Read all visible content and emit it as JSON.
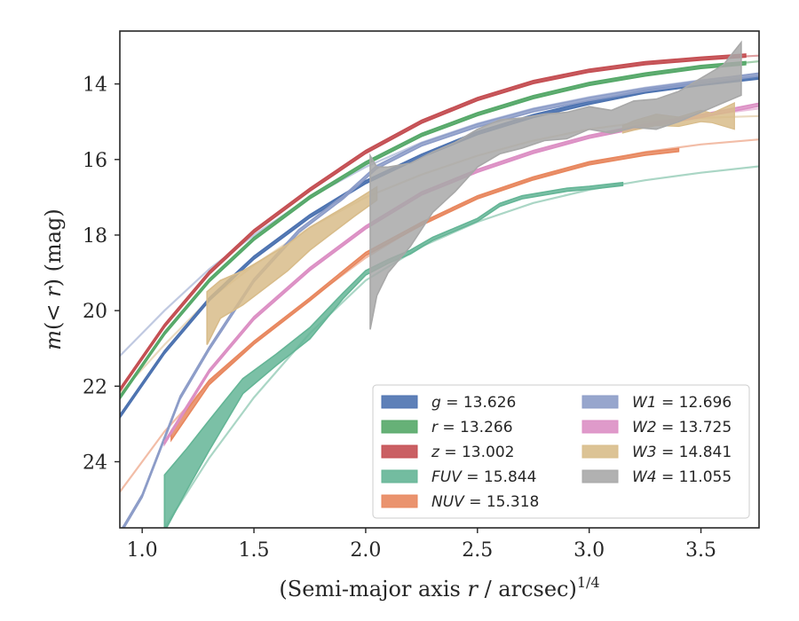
{
  "chart_data": {
    "type": "line",
    "xlabel": "(Semi-major axis r / arcsec)^{1/4}",
    "ylabel": "m(< r) (mag)",
    "xlim": [
      0.9,
      3.76
    ],
    "ylim": [
      25.75,
      12.6
    ],
    "y_inverted": true,
    "xticks": [
      1.0,
      1.5,
      2.0,
      2.5,
      3.0,
      3.5
    ],
    "xtick_labels": [
      "1.0",
      "1.5",
      "2.0",
      "2.5",
      "3.0",
      "3.5"
    ],
    "yticks": [
      14,
      16,
      18,
      20,
      22,
      24
    ],
    "ytick_labels": [
      "14",
      "16",
      "18",
      "20",
      "22",
      "24"
    ],
    "legend_position": "lower right",
    "legend_columns": 2,
    "series": [
      {
        "name": "g = 13.626",
        "legend": {
          "sym": "g",
          "rest": " = 13.626"
        },
        "color": "#4c72b0",
        "model": [
          [
            0.9,
            22.8
          ],
          [
            1.1,
            21.1
          ],
          [
            1.3,
            19.7
          ],
          [
            1.5,
            18.6
          ],
          [
            1.75,
            17.5
          ],
          [
            2.0,
            16.6
          ],
          [
            2.25,
            15.9
          ],
          [
            2.5,
            15.3
          ],
          [
            2.75,
            14.85
          ],
          [
            3.0,
            14.5
          ],
          [
            3.25,
            14.2
          ],
          [
            3.5,
            14.0
          ],
          [
            3.76,
            13.83
          ]
        ],
        "data": [
          [
            0.9,
            22.8
          ],
          [
            1.1,
            21.1
          ],
          [
            1.3,
            19.7
          ],
          [
            1.5,
            18.6
          ],
          [
            1.75,
            17.5
          ],
          [
            2.0,
            16.6
          ],
          [
            2.25,
            15.9
          ],
          [
            2.5,
            15.3
          ],
          [
            2.75,
            14.85
          ],
          [
            3.0,
            14.5
          ],
          [
            3.25,
            14.2
          ],
          [
            3.5,
            14.0
          ],
          [
            3.76,
            13.83
          ]
        ],
        "data_width": 0.08
      },
      {
        "name": "r = 13.266",
        "legend": {
          "sym": "r",
          "rest": " = 13.266"
        },
        "color": "#55a868",
        "model": [
          [
            0.9,
            22.3
          ],
          [
            1.1,
            20.6
          ],
          [
            1.3,
            19.2
          ],
          [
            1.5,
            18.1
          ],
          [
            1.75,
            17.0
          ],
          [
            2.0,
            16.1
          ],
          [
            2.25,
            15.35
          ],
          [
            2.5,
            14.8
          ],
          [
            2.75,
            14.35
          ],
          [
            3.0,
            14.0
          ],
          [
            3.25,
            13.75
          ],
          [
            3.5,
            13.55
          ],
          [
            3.76,
            13.4
          ]
        ],
        "data": [
          [
            0.9,
            22.3
          ],
          [
            1.1,
            20.6
          ],
          [
            1.3,
            19.2
          ],
          [
            1.5,
            18.1
          ],
          [
            1.75,
            17.0
          ],
          [
            2.0,
            16.1
          ],
          [
            2.25,
            15.35
          ],
          [
            2.5,
            14.8
          ],
          [
            2.75,
            14.35
          ],
          [
            3.0,
            14.0
          ],
          [
            3.25,
            13.75
          ],
          [
            3.5,
            13.55
          ],
          [
            3.7,
            13.45
          ]
        ],
        "data_width": 0.08
      },
      {
        "name": "z = 13.002",
        "legend": {
          "sym": "z",
          "rest": " = 13.002"
        },
        "color": "#c44e52",
        "model": [
          [
            0.9,
            22.1
          ],
          [
            1.1,
            20.4
          ],
          [
            1.3,
            19.0
          ],
          [
            1.5,
            17.9
          ],
          [
            1.75,
            16.8
          ],
          [
            2.0,
            15.8
          ],
          [
            2.25,
            15.0
          ],
          [
            2.5,
            14.4
          ],
          [
            2.75,
            13.95
          ],
          [
            3.0,
            13.65
          ],
          [
            3.25,
            13.45
          ],
          [
            3.5,
            13.33
          ],
          [
            3.76,
            13.25
          ]
        ],
        "data": [
          [
            0.9,
            22.1
          ],
          [
            1.1,
            20.4
          ],
          [
            1.3,
            19.0
          ],
          [
            1.5,
            17.9
          ],
          [
            1.75,
            16.8
          ],
          [
            2.0,
            15.8
          ],
          [
            2.25,
            15.0
          ],
          [
            2.5,
            14.4
          ],
          [
            2.75,
            13.95
          ],
          [
            3.0,
            13.65
          ],
          [
            3.25,
            13.45
          ],
          [
            3.5,
            13.33
          ],
          [
            3.7,
            13.25
          ]
        ],
        "data_width": 0.08
      },
      {
        "name": "FUV = 15.844",
        "legend": {
          "sym": "FUV",
          "rest": " = 15.844"
        },
        "color": "#64b596",
        "model": [
          [
            1.1,
            25.75
          ],
          [
            1.3,
            23.9
          ],
          [
            1.5,
            22.3
          ],
          [
            1.75,
            20.6
          ],
          [
            2.0,
            19.2
          ],
          [
            2.25,
            18.3
          ],
          [
            2.5,
            17.65
          ],
          [
            2.75,
            17.15
          ],
          [
            3.0,
            16.8
          ],
          [
            3.25,
            16.55
          ],
          [
            3.5,
            16.35
          ],
          [
            3.76,
            16.18
          ]
        ],
        "data": [
          [
            1.1,
            25.1
          ],
          [
            1.2,
            24.2
          ],
          [
            1.3,
            23.3
          ],
          [
            1.45,
            22.0
          ],
          [
            1.6,
            21.3
          ],
          [
            1.75,
            20.6
          ],
          [
            1.9,
            19.6
          ],
          [
            2.0,
            19.0
          ],
          [
            2.1,
            18.7
          ],
          [
            2.2,
            18.45
          ],
          [
            2.3,
            18.1
          ],
          [
            2.4,
            17.85
          ],
          [
            2.5,
            17.6
          ],
          [
            2.6,
            17.2
          ],
          [
            2.7,
            17.0
          ],
          [
            2.8,
            16.9
          ],
          [
            2.9,
            16.8
          ],
          [
            3.0,
            16.75
          ],
          [
            3.15,
            16.65
          ]
        ],
        "data_width": [
          1.5,
          1.1,
          0.8,
          0.4,
          0.3,
          0.3,
          0.15,
          0.12,
          0.1,
          0.1,
          0.08,
          0.08,
          0.08,
          0.08,
          0.08,
          0.08,
          0.08,
          0.08,
          0.08
        ]
      },
      {
        "name": "NUV = 15.318",
        "legend": {
          "sym": "NUV",
          "rest": " = 15.318"
        },
        "color": "#e8875e",
        "model": [
          [
            0.9,
            24.8
          ],
          [
            1.1,
            23.2
          ],
          [
            1.3,
            21.9
          ],
          [
            1.5,
            20.85
          ],
          [
            1.75,
            19.7
          ],
          [
            2.0,
            18.6
          ],
          [
            2.25,
            17.7
          ],
          [
            2.5,
            17.0
          ],
          [
            2.75,
            16.5
          ],
          [
            3.0,
            16.1
          ],
          [
            3.25,
            15.8
          ],
          [
            3.5,
            15.6
          ],
          [
            3.76,
            15.47
          ]
        ],
        "data": [
          [
            1.13,
            23.3
          ],
          [
            1.3,
            21.9
          ],
          [
            1.5,
            20.85
          ],
          [
            1.75,
            19.7
          ],
          [
            2.0,
            18.5
          ],
          [
            2.25,
            17.7
          ],
          [
            2.5,
            17.0
          ],
          [
            2.75,
            16.5
          ],
          [
            3.0,
            16.1
          ],
          [
            3.25,
            15.85
          ],
          [
            3.4,
            15.75
          ]
        ],
        "data_width": [
          0.25,
          0.12,
          0.08,
          0.08,
          0.08,
          0.08,
          0.08,
          0.08,
          0.08,
          0.08,
          0.08
        ]
      },
      {
        "name": "W1 = 12.696",
        "legend": {
          "sym": "W1",
          "rest": " = 12.696"
        },
        "color": "#8c9cc8",
        "model": [
          [
            0.9,
            21.2
          ],
          [
            1.1,
            20.0
          ],
          [
            1.3,
            18.9
          ],
          [
            1.5,
            18.0
          ],
          [
            1.75,
            17.0
          ],
          [
            2.0,
            16.2
          ],
          [
            2.25,
            15.55
          ],
          [
            2.5,
            15.05
          ],
          [
            2.75,
            14.65
          ],
          [
            3.0,
            14.35
          ],
          [
            3.25,
            14.1
          ],
          [
            3.5,
            13.9
          ],
          [
            3.76,
            13.73
          ]
        ],
        "data": [
          [
            0.9,
            25.9
          ],
          [
            1.0,
            24.9
          ],
          [
            1.17,
            22.3
          ],
          [
            1.3,
            21.0
          ],
          [
            1.5,
            19.2
          ],
          [
            1.7,
            17.9
          ],
          [
            1.9,
            17.0
          ],
          [
            2.05,
            16.2
          ],
          [
            2.25,
            15.6
          ],
          [
            2.5,
            15.1
          ],
          [
            2.75,
            14.7
          ],
          [
            3.0,
            14.4
          ],
          [
            3.25,
            14.15
          ],
          [
            3.5,
            13.95
          ],
          [
            3.76,
            13.75
          ]
        ],
        "data_width": 0.08
      },
      {
        "name": "W2 = 13.725",
        "legend": {
          "sym": "W2",
          "rest": " = 13.725"
        },
        "color": "#dc8fc4",
        "model": [
          [
            1.1,
            23.5
          ],
          [
            1.3,
            21.6
          ],
          [
            1.5,
            20.2
          ],
          [
            1.75,
            18.9
          ],
          [
            2.0,
            17.8
          ],
          [
            2.25,
            16.9
          ],
          [
            2.5,
            16.3
          ],
          [
            2.75,
            15.8
          ],
          [
            3.0,
            15.4
          ],
          [
            3.25,
            15.1
          ],
          [
            3.5,
            14.85
          ],
          [
            3.76,
            14.65
          ]
        ],
        "data": [
          [
            1.1,
            23.5
          ],
          [
            1.3,
            21.6
          ],
          [
            1.5,
            20.2
          ],
          [
            1.75,
            18.9
          ],
          [
            2.0,
            17.8
          ],
          [
            2.25,
            16.9
          ],
          [
            2.5,
            16.3
          ],
          [
            2.75,
            15.8
          ],
          [
            3.0,
            15.4
          ],
          [
            3.25,
            15.1
          ],
          [
            3.5,
            14.85
          ],
          [
            3.76,
            14.55
          ]
        ],
        "data_width": 0.08
      },
      {
        "name": "W3 = 14.841",
        "legend": {
          "sym": "W3",
          "rest": " = 14.841"
        },
        "color": "#d8bc8a",
        "model": [
          [
            0.9,
            22.2
          ],
          [
            1.1,
            20.9
          ],
          [
            1.3,
            19.7
          ],
          [
            1.5,
            18.8
          ],
          [
            1.75,
            17.8
          ],
          [
            2.0,
            17.0
          ],
          [
            2.25,
            16.4
          ],
          [
            2.5,
            15.9
          ],
          [
            2.75,
            15.5
          ],
          [
            3.0,
            15.2
          ],
          [
            3.25,
            15.0
          ],
          [
            3.5,
            14.9
          ],
          [
            3.76,
            14.85
          ]
        ],
        "data": [
          [
            1.29,
            20.2
          ],
          [
            1.35,
            19.7
          ],
          [
            1.45,
            19.4
          ],
          [
            1.55,
            19.0
          ],
          [
            1.65,
            18.6
          ],
          [
            1.75,
            18.1
          ],
          [
            1.85,
            17.7
          ],
          [
            1.95,
            17.3
          ],
          [
            2.05,
            16.9
          ]
        ],
        "data_width": [
          1.4,
          1.0,
          0.9,
          0.8,
          0.7,
          0.6,
          0.5,
          0.4,
          0.35
        ],
        "data_tail": [
          [
            3.15,
            15.2
          ],
          [
            3.2,
            15.1
          ],
          [
            3.3,
            14.95
          ],
          [
            3.4,
            15.0
          ],
          [
            3.5,
            14.85
          ],
          [
            3.55,
            14.9
          ],
          [
            3.65,
            14.85
          ]
        ],
        "data_tail_width": [
          0.2,
          0.25,
          0.3,
          0.25,
          0.3,
          0.25,
          0.7
        ]
      },
      {
        "name": "W4 = 11.055",
        "legend": {
          "sym": "W4",
          "rest": " = 11.055"
        },
        "color": "#a8a8a8",
        "model": [],
        "data": [
          [
            2.02,
            18.2
          ],
          [
            2.05,
            17.9
          ],
          [
            2.1,
            17.6
          ],
          [
            2.2,
            17.2
          ],
          [
            2.3,
            16.6
          ],
          [
            2.4,
            16.2
          ],
          [
            2.5,
            15.7
          ],
          [
            2.6,
            15.4
          ],
          [
            2.7,
            15.3
          ],
          [
            2.8,
            15.15
          ],
          [
            2.9,
            15.1
          ],
          [
            3.0,
            14.9
          ],
          [
            3.1,
            15.0
          ],
          [
            3.2,
            14.8
          ],
          [
            3.3,
            14.8
          ],
          [
            3.4,
            14.6
          ],
          [
            3.5,
            14.3
          ],
          [
            3.6,
            14.0
          ],
          [
            3.68,
            13.6
          ]
        ],
        "data_width": [
          4.6,
          3.4,
          2.8,
          2.2,
          1.6,
          1.3,
          1.0,
          0.9,
          0.8,
          0.7,
          0.7,
          0.6,
          0.6,
          0.7,
          0.8,
          0.8,
          0.9,
          1.0,
          1.4
        ]
      }
    ]
  }
}
